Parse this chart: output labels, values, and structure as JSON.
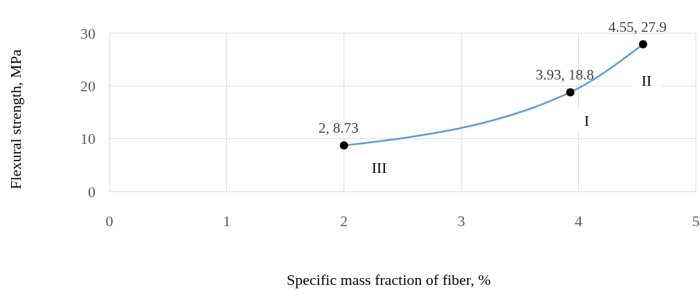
{
  "chart_data": {
    "type": "line",
    "xlabel": "Specific mass fraction of fiber, %",
    "ylabel": "Flexural strength, MPa",
    "series": [
      {
        "color": "#5b9bd5",
        "x": [
          2,
          3.93,
          4.55
        ],
        "values": [
          8.73,
          18.8,
          27.9
        ],
        "value_labels": [
          "2, 8.73",
          "3.93, 18.8",
          "4.55, 27.9"
        ]
      }
    ],
    "xlim": [
      0,
      5
    ],
    "xticks": [
      0,
      1,
      2,
      3,
      4,
      5
    ],
    "ylim": [
      0,
      30
    ],
    "yticks": [
      0,
      10,
      20,
      30
    ],
    "grid": true,
    "marker": "circle",
    "annotations": [
      {
        "text": "III",
        "x": 2.3,
        "y": 4.5
      },
      {
        "text": "I",
        "x": 4.07,
        "y": 13.4
      },
      {
        "text": "II",
        "x": 4.58,
        "y": 21
      }
    ]
  }
}
